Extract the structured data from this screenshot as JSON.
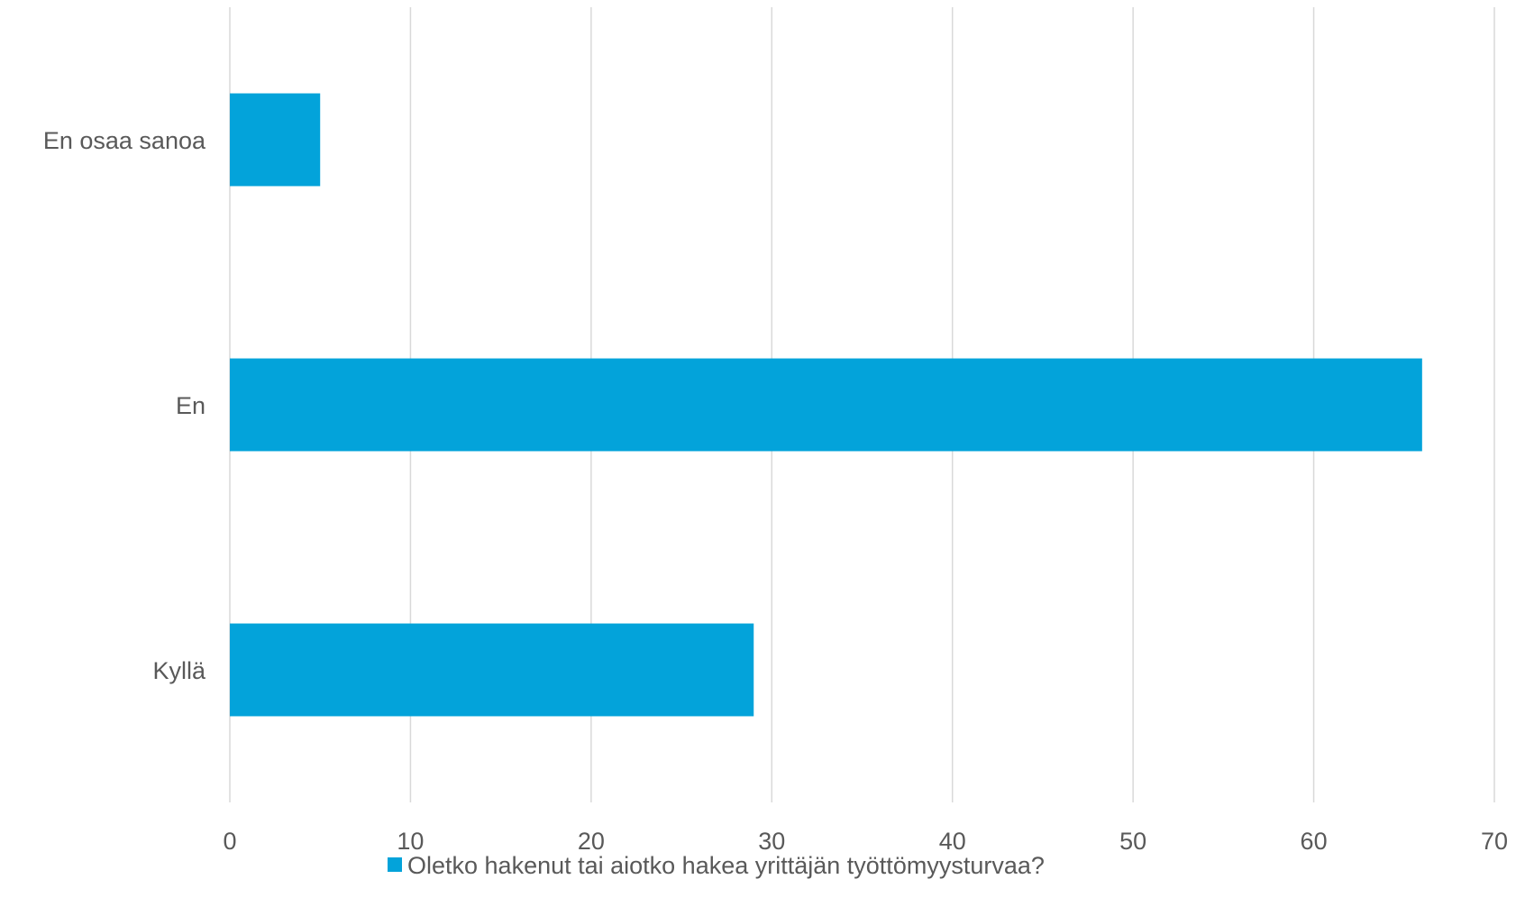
{
  "chart_data": {
    "type": "bar",
    "orientation": "horizontal",
    "categories": [
      "Kyllä",
      "En",
      "En osaa sanoa"
    ],
    "series": [
      {
        "name": "Oletko hakenut tai aiotko hakea yrittäjän työttömyysturvaa?",
        "values": [
          29,
          66,
          5
        ]
      }
    ],
    "xlim": [
      0,
      70
    ],
    "xticks": [
      "0",
      "10",
      "20",
      "30",
      "40",
      "50",
      "60",
      "70"
    ],
    "title": "",
    "xlabel": "",
    "ylabel": "",
    "grid": "vertical",
    "legend_position": "bottom",
    "bar_color": "#03a3da"
  }
}
